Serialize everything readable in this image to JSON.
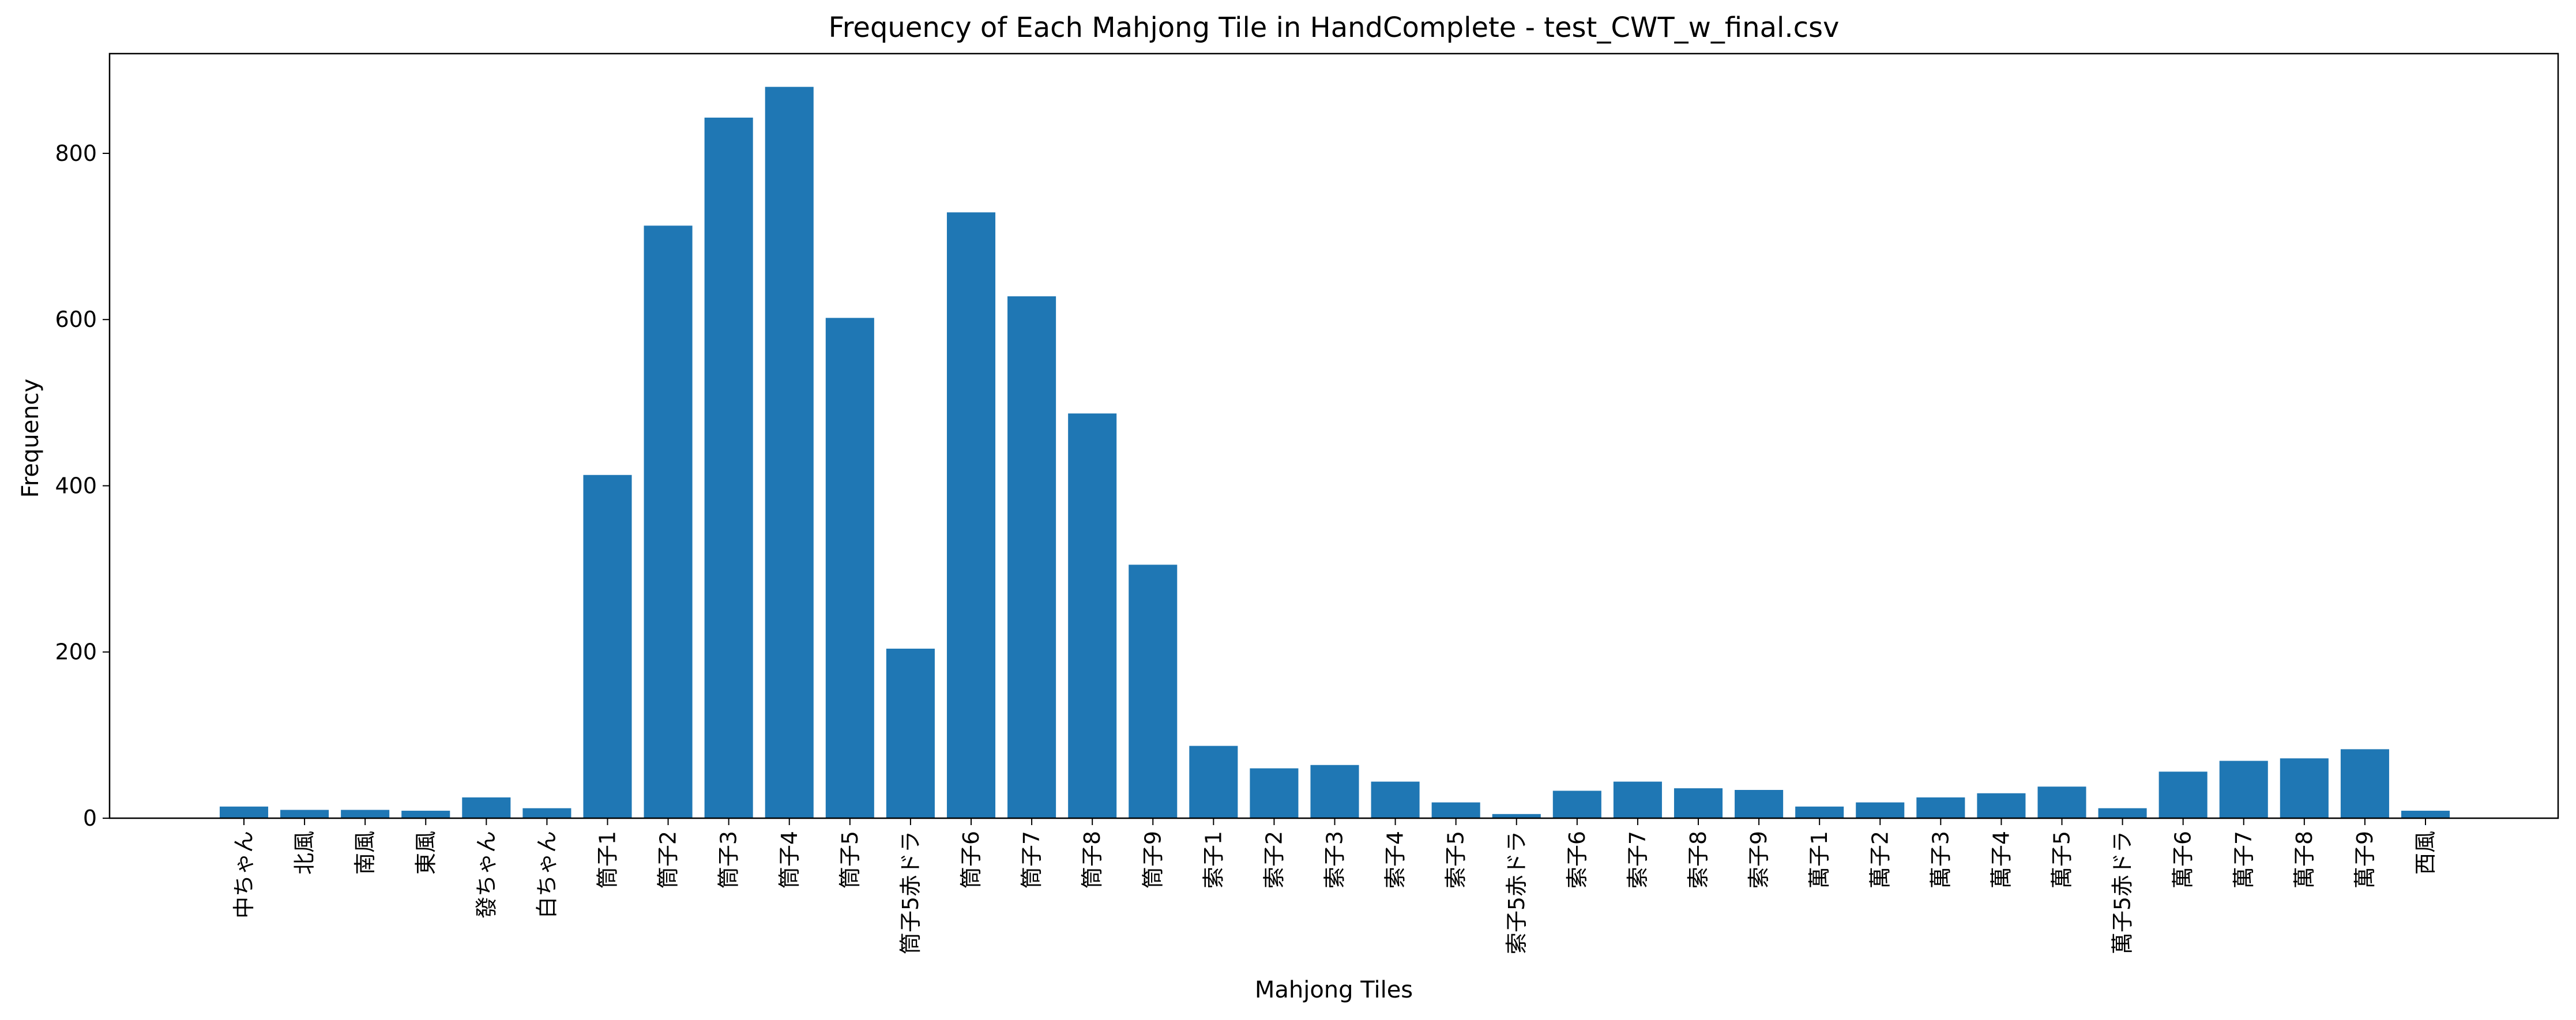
{
  "chart_data": {
    "type": "bar",
    "title": "Frequency of Each Mahjong Tile in HandComplete - test_CWT_w_final.csv",
    "xlabel": "Mahjong Tiles",
    "ylabel": "Frequency",
    "ylim": [
      0,
      920
    ],
    "yticks": [
      0,
      200,
      400,
      600,
      800
    ],
    "grid": false,
    "bar_color": "#1f77b4",
    "categories": [
      "中ちゃん",
      "北風",
      "南風",
      "東風",
      "發ちゃん",
      "白ちゃん",
      "筒子1",
      "筒子2",
      "筒子3",
      "筒子4",
      "筒子5",
      "筒子5赤ドラ",
      "筒子6",
      "筒子7",
      "筒子8",
      "筒子9",
      "索子1",
      "索子2",
      "索子3",
      "索子4",
      "索子5",
      "索子5赤ドラ",
      "索子6",
      "索子7",
      "索子8",
      "索子9",
      "萬子1",
      "萬子2",
      "萬子3",
      "萬子4",
      "萬子5",
      "萬子5赤ドラ",
      "萬子6",
      "萬子7",
      "萬子8",
      "萬子9",
      "西風"
    ],
    "values": [
      14,
      10,
      10,
      9,
      25,
      12,
      413,
      713,
      843,
      880,
      602,
      204,
      729,
      628,
      487,
      305,
      87,
      60,
      64,
      44,
      19,
      5,
      33,
      44,
      36,
      34,
      14,
      19,
      25,
      30,
      38,
      12,
      56,
      69,
      72,
      83,
      9
    ]
  }
}
